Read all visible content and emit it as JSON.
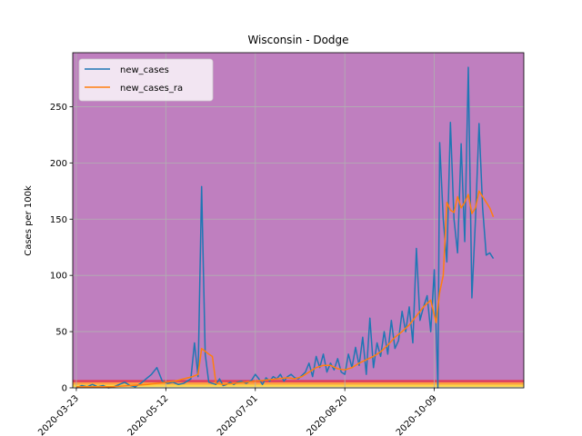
{
  "chart_data": {
    "type": "line",
    "title": "Wisconsin - Dodge",
    "xlabel": "",
    "ylabel": "Cases per 100k",
    "xlim": [
      -2,
      250
    ],
    "ylim": [
      0,
      298
    ],
    "grid": true,
    "legend_position": "top-left",
    "x_tick_labels": [
      "2020-03-23",
      "2020-05-12",
      "2020-07-01",
      "2020-08-20",
      "2020-10-09"
    ],
    "x_tick_days": [
      0,
      50,
      100,
      150,
      200
    ],
    "y_ticks": [
      0,
      50,
      100,
      150,
      200,
      250
    ],
    "background_color": "#bf7fbf",
    "bands": [
      {
        "from": 0,
        "to": 1,
        "color": "#ffffbf"
      },
      {
        "from": 1,
        "to": 3,
        "color": "#ffd740"
      },
      {
        "from": 3,
        "to": 5,
        "color": "#ff9f40"
      },
      {
        "from": 5,
        "to": 7,
        "color": "#e03c5a"
      }
    ],
    "series": [
      {
        "name": "new_cases",
        "color": "#1f77b4",
        "points": [
          [
            0,
            0
          ],
          [
            3,
            2
          ],
          [
            6,
            1
          ],
          [
            9,
            3
          ],
          [
            12,
            1
          ],
          [
            15,
            2
          ],
          [
            18,
            0
          ],
          [
            21,
            1
          ],
          [
            24,
            3
          ],
          [
            27,
            5
          ],
          [
            30,
            2
          ],
          [
            33,
            1
          ],
          [
            36,
            4
          ],
          [
            39,
            8
          ],
          [
            42,
            12
          ],
          [
            45,
            18
          ],
          [
            48,
            6
          ],
          [
            51,
            4
          ],
          [
            54,
            5
          ],
          [
            57,
            3
          ],
          [
            60,
            4
          ],
          [
            62,
            6
          ],
          [
            64,
            8
          ],
          [
            66,
            40
          ],
          [
            68,
            10
          ],
          [
            70,
            179
          ],
          [
            72,
            30
          ],
          [
            74,
            5
          ],
          [
            76,
            4
          ],
          [
            78,
            3
          ],
          [
            80,
            8
          ],
          [
            82,
            2
          ],
          [
            84,
            3
          ],
          [
            86,
            5
          ],
          [
            88,
            3
          ],
          [
            90,
            5
          ],
          [
            92,
            6
          ],
          [
            95,
            4
          ],
          [
            98,
            7
          ],
          [
            100,
            12
          ],
          [
            102,
            8
          ],
          [
            104,
            3
          ],
          [
            106,
            9
          ],
          [
            108,
            6
          ],
          [
            110,
            10
          ],
          [
            112,
            8
          ],
          [
            114,
            12
          ],
          [
            116,
            6
          ],
          [
            118,
            10
          ],
          [
            120,
            12
          ],
          [
            122,
            9
          ],
          [
            124,
            8
          ],
          [
            126,
            11
          ],
          [
            128,
            14
          ],
          [
            130,
            22
          ],
          [
            132,
            10
          ],
          [
            134,
            28
          ],
          [
            136,
            18
          ],
          [
            138,
            30
          ],
          [
            140,
            14
          ],
          [
            142,
            22
          ],
          [
            144,
            16
          ],
          [
            146,
            26
          ],
          [
            148,
            14
          ],
          [
            150,
            12
          ],
          [
            152,
            30
          ],
          [
            154,
            18
          ],
          [
            156,
            36
          ],
          [
            158,
            20
          ],
          [
            160,
            45
          ],
          [
            162,
            12
          ],
          [
            164,
            62
          ],
          [
            166,
            18
          ],
          [
            168,
            40
          ],
          [
            170,
            28
          ],
          [
            172,
            50
          ],
          [
            174,
            30
          ],
          [
            176,
            60
          ],
          [
            178,
            35
          ],
          [
            180,
            42
          ],
          [
            182,
            68
          ],
          [
            184,
            50
          ],
          [
            186,
            72
          ],
          [
            188,
            40
          ],
          [
            190,
            124
          ],
          [
            192,
            60
          ],
          [
            194,
            72
          ],
          [
            196,
            82
          ],
          [
            198,
            50
          ],
          [
            200,
            105
          ],
          [
            202,
            0
          ],
          [
            203,
            218
          ],
          [
            205,
            150
          ],
          [
            207,
            112
          ],
          [
            209,
            236
          ],
          [
            211,
            150
          ],
          [
            213,
            120
          ],
          [
            215,
            217
          ],
          [
            217,
            130
          ],
          [
            219,
            285
          ],
          [
            221,
            80
          ],
          [
            223,
            150
          ],
          [
            225,
            235
          ],
          [
            227,
            160
          ],
          [
            229,
            118
          ],
          [
            231,
            120
          ],
          [
            233,
            115
          ]
        ]
      },
      {
        "name": "new_cases_ra",
        "color": "#ff7f0e",
        "points": [
          [
            0,
            1
          ],
          [
            10,
            1
          ],
          [
            20,
            1
          ],
          [
            30,
            2
          ],
          [
            40,
            3
          ],
          [
            50,
            5
          ],
          [
            55,
            6
          ],
          [
            60,
            8
          ],
          [
            65,
            10
          ],
          [
            68,
            12
          ],
          [
            70,
            35
          ],
          [
            74,
            30
          ],
          [
            76,
            28
          ],
          [
            78,
            4
          ],
          [
            82,
            3
          ],
          [
            88,
            4
          ],
          [
            94,
            5
          ],
          [
            100,
            6
          ],
          [
            106,
            7
          ],
          [
            112,
            8
          ],
          [
            118,
            9
          ],
          [
            122,
            8
          ],
          [
            126,
            10
          ],
          [
            130,
            14
          ],
          [
            134,
            18
          ],
          [
            138,
            20
          ],
          [
            142,
            20
          ],
          [
            146,
            17
          ],
          [
            150,
            16
          ],
          [
            154,
            18
          ],
          [
            158,
            22
          ],
          [
            162,
            25
          ],
          [
            166,
            28
          ],
          [
            170,
            32
          ],
          [
            174,
            38
          ],
          [
            178,
            45
          ],
          [
            182,
            50
          ],
          [
            186,
            56
          ],
          [
            190,
            64
          ],
          [
            194,
            72
          ],
          [
            198,
            78
          ],
          [
            201,
            58
          ],
          [
            203,
            85
          ],
          [
            205,
            100
          ],
          [
            207,
            165
          ],
          [
            209,
            158
          ],
          [
            211,
            156
          ],
          [
            213,
            170
          ],
          [
            215,
            160
          ],
          [
            217,
            165
          ],
          [
            219,
            172
          ],
          [
            221,
            155
          ],
          [
            223,
            160
          ],
          [
            225,
            175
          ],
          [
            227,
            170
          ],
          [
            229,
            165
          ],
          [
            231,
            160
          ],
          [
            233,
            152
          ]
        ]
      }
    ]
  }
}
